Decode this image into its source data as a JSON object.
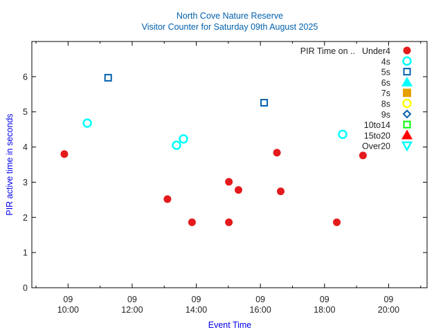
{
  "chart_data": {
    "type": "scatter",
    "title": "North Cove Nature Reserve",
    "subtitle": "Visitor Counter for Saturday 09th August 2025",
    "xlabel": "Event Time",
    "ylabel": "PIR active time in seconds",
    "xlim_hours": [
      8.87,
      21.2
    ],
    "ylim": [
      0,
      7
    ],
    "yticks": [
      0,
      1,
      2,
      3,
      4,
      5,
      6
    ],
    "xticks": [
      {
        "hour": 10,
        "day": "09",
        "time": "10:00"
      },
      {
        "hour": 12,
        "day": "09",
        "time": "12:00"
      },
      {
        "hour": 14,
        "day": "09",
        "time": "14:00"
      },
      {
        "hour": 16,
        "day": "09",
        "time": "16:00"
      },
      {
        "hour": 18,
        "day": "09",
        "time": "18:00"
      },
      {
        "hour": 20,
        "day": "09",
        "time": "20:00"
      }
    ],
    "legend_title": "PIR Time on ..",
    "legend_position": "top-right",
    "grid": false,
    "series": [
      {
        "name": "Under4",
        "marker": "filled-circle",
        "color": "#e41a1c",
        "points": [
          {
            "time": "09:53",
            "value": 3.8
          },
          {
            "time": "13:06",
            "value": 2.52
          },
          {
            "time": "13:52",
            "value": 1.86
          },
          {
            "time": "15:01",
            "value": 3.01
          },
          {
            "time": "15:01",
            "value": 1.86
          },
          {
            "time": "15:19",
            "value": 2.78
          },
          {
            "time": "16:31",
            "value": 3.84
          },
          {
            "time": "16:38",
            "value": 2.74
          },
          {
            "time": "18:23",
            "value": 1.86
          },
          {
            "time": "19:12",
            "value": 3.76
          }
        ]
      },
      {
        "name": "4s",
        "marker": "open-circle",
        "color": "#00ffff",
        "points": [
          {
            "time": "10:36",
            "value": 4.68
          },
          {
            "time": "13:23",
            "value": 4.05
          },
          {
            "time": "13:36",
            "value": 4.23
          },
          {
            "time": "18:34",
            "value": 4.36
          }
        ]
      },
      {
        "name": "5s",
        "marker": "open-square",
        "color": "#0060ad",
        "points": [
          {
            "time": "11:15",
            "value": 5.97
          },
          {
            "time": "16:07",
            "value": 5.26
          }
        ]
      },
      {
        "name": "6s",
        "marker": "filled-triangle",
        "color": "#00ffff",
        "points": []
      },
      {
        "name": "7s",
        "marker": "filled-square",
        "color": "#e69f00",
        "points": []
      },
      {
        "name": "8s",
        "marker": "open-circle",
        "color": "#ffff00",
        "points": []
      },
      {
        "name": "9s",
        "marker": "open-diamond",
        "color": "#0060ad",
        "points": []
      },
      {
        "name": "10to14",
        "marker": "open-square",
        "color": "#00ff00",
        "points": []
      },
      {
        "name": "15to20",
        "marker": "filled-triangle",
        "color": "#ff0000",
        "points": []
      },
      {
        "name": "Over20",
        "marker": "open-triangle-down",
        "color": "#00ffff",
        "points": []
      }
    ]
  }
}
